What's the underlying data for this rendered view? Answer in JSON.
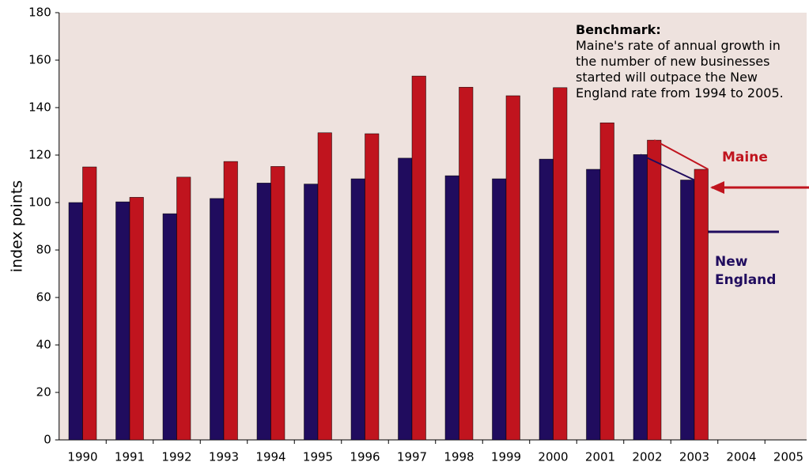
{
  "chart_data": {
    "type": "bar",
    "y_label": "index points",
    "categories": [
      "1990",
      "1991",
      "1992",
      "1993",
      "1994",
      "1995",
      "1996",
      "1997",
      "1998",
      "1999",
      "2000",
      "2001",
      "2002",
      "2003",
      "2004",
      "2005"
    ],
    "series": [
      {
        "name": "New England",
        "color": "#200c5e",
        "values": [
          100,
          100.3,
          95.3,
          101.7,
          108.2,
          107.8,
          110,
          118.7,
          111.3,
          110,
          118.3,
          114,
          120.2,
          109.5,
          null,
          null
        ]
      },
      {
        "name": "Maine",
        "color": "#c0141e",
        "values": [
          115,
          102.2,
          110.7,
          117.3,
          115.2,
          129.4,
          129,
          153.3,
          148.6,
          145,
          148.4,
          133.6,
          126.3,
          114,
          null,
          null
        ]
      }
    ],
    "ylim": [
      0,
      180
    ],
    "yticks": [
      0,
      20,
      40,
      60,
      80,
      100,
      120,
      140,
      160,
      180
    ],
    "grid": false,
    "annotation": {
      "title": "Benchmark:",
      "lines": [
        "Maine's rate of annual growth in",
        "the number of new businesses",
        "started will outpace the New",
        "England rate from 1994 to 2005."
      ]
    }
  }
}
